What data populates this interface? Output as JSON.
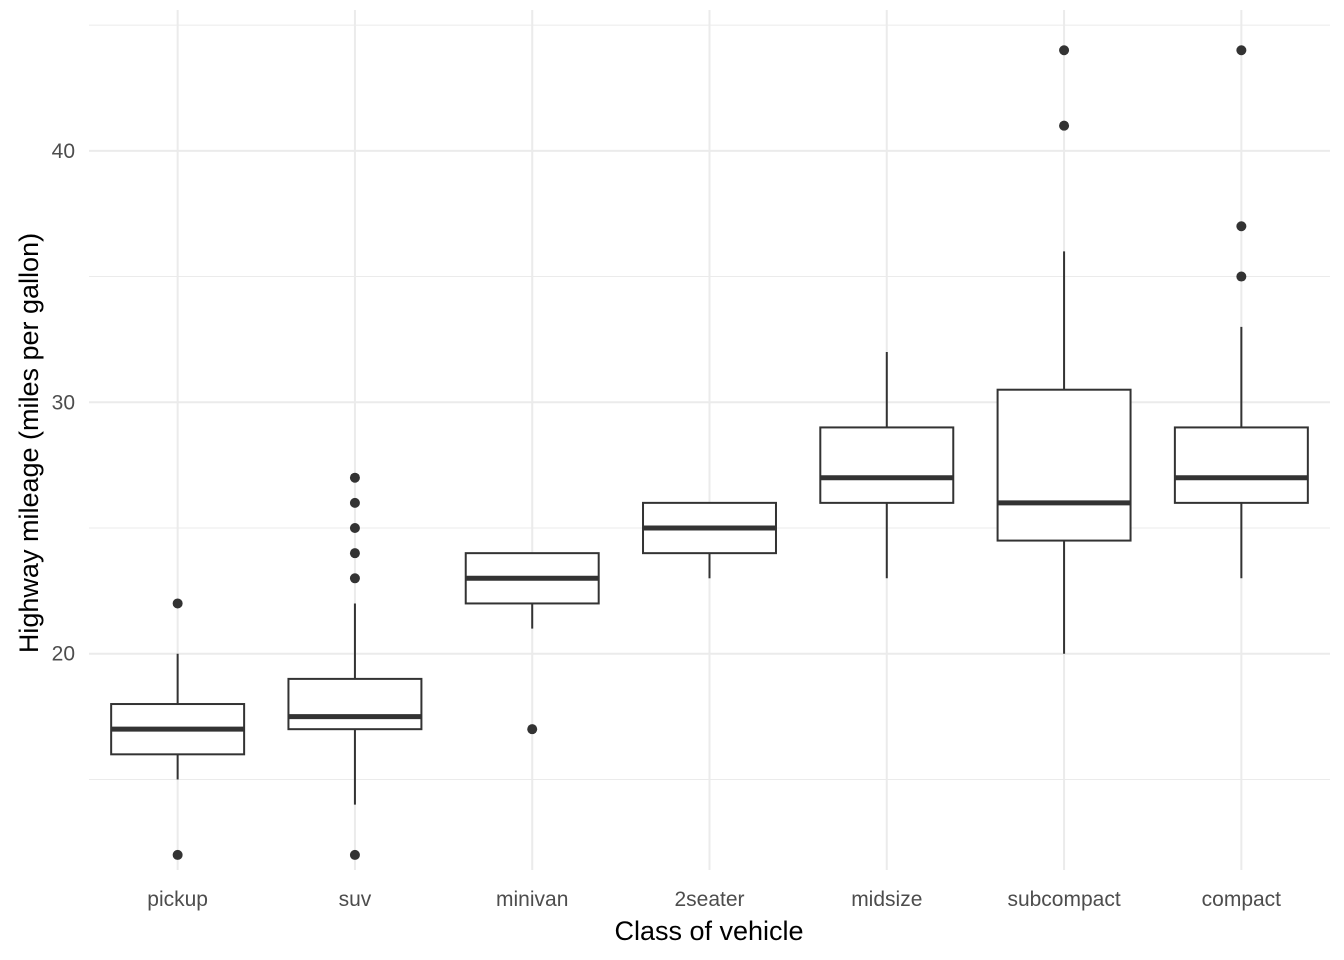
{
  "chart_data": {
    "type": "box",
    "xlabel": "Class of vehicle",
    "ylabel": "Highway mileage (miles per gallon)",
    "ylim": [
      11.4,
      45.6
    ],
    "yticks": [
      20,
      30,
      40
    ],
    "ygrid_minor": [
      15,
      25,
      35,
      45
    ],
    "grid": true,
    "categories": [
      "pickup",
      "suv",
      "minivan",
      "2seater",
      "midsize",
      "subcompact",
      "compact"
    ],
    "boxes": [
      {
        "category": "pickup",
        "lower_whisker": 15,
        "q1": 16,
        "median": 17,
        "q3": 18,
        "upper_whisker": 20,
        "outliers": [
          12,
          22
        ]
      },
      {
        "category": "suv",
        "lower_whisker": 14,
        "q1": 17,
        "median": 17.5,
        "q3": 19,
        "upper_whisker": 22,
        "outliers": [
          12,
          23,
          24,
          25,
          26,
          27
        ]
      },
      {
        "category": "minivan",
        "lower_whisker": 21,
        "q1": 22,
        "median": 23,
        "q3": 24,
        "upper_whisker": 24,
        "outliers": [
          17
        ]
      },
      {
        "category": "2seater",
        "lower_whisker": 23,
        "q1": 24,
        "median": 25,
        "q3": 26,
        "upper_whisker": 26,
        "outliers": []
      },
      {
        "category": "midsize",
        "lower_whisker": 23,
        "q1": 26,
        "median": 27,
        "q3": 29,
        "upper_whisker": 32,
        "outliers": []
      },
      {
        "category": "subcompact",
        "lower_whisker": 20,
        "q1": 24.5,
        "median": 26,
        "q3": 30.5,
        "upper_whisker": 36,
        "outliers": [
          41,
          44
        ]
      },
      {
        "category": "compact",
        "lower_whisker": 23,
        "q1": 26,
        "median": 27,
        "q3": 29,
        "upper_whisker": 33,
        "outliers": [
          35,
          37,
          44
        ]
      }
    ],
    "colors": {
      "box_line": "#333333",
      "box_fill": "#ffffff",
      "grid": "#ebebeb",
      "tick_text": "#4d4d4d",
      "title_text": "#000000"
    }
  }
}
